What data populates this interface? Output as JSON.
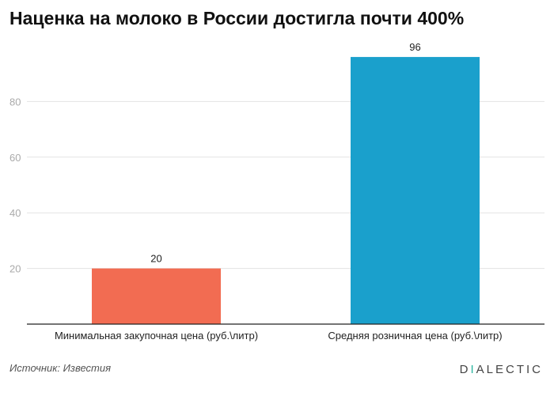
{
  "title": "Наценка на молоко в России достигла почти 400%",
  "source": "Источник: Известия",
  "logo": {
    "first": "D",
    "accent": "I",
    "rest": "ALECTIC"
  },
  "colors": {
    "bar1": "#f26c52",
    "bar2": "#1aa0cc",
    "grid": "#e3e3e3",
    "axis": "#222222",
    "tick": "#aaaaaa"
  },
  "chart_data": {
    "type": "bar",
    "title": "Наценка на молоко в России достигла почти 400%",
    "categories": [
      "Минимальная закупочная цена (руб.\\литр)",
      "Средняя розничная цена (руб.\\литр)"
    ],
    "values": [
      20,
      96
    ],
    "yticks": [
      20,
      40,
      60,
      80
    ],
    "ylim": [
      0,
      100
    ],
    "xlabel": "",
    "ylabel": "",
    "grid": true
  }
}
